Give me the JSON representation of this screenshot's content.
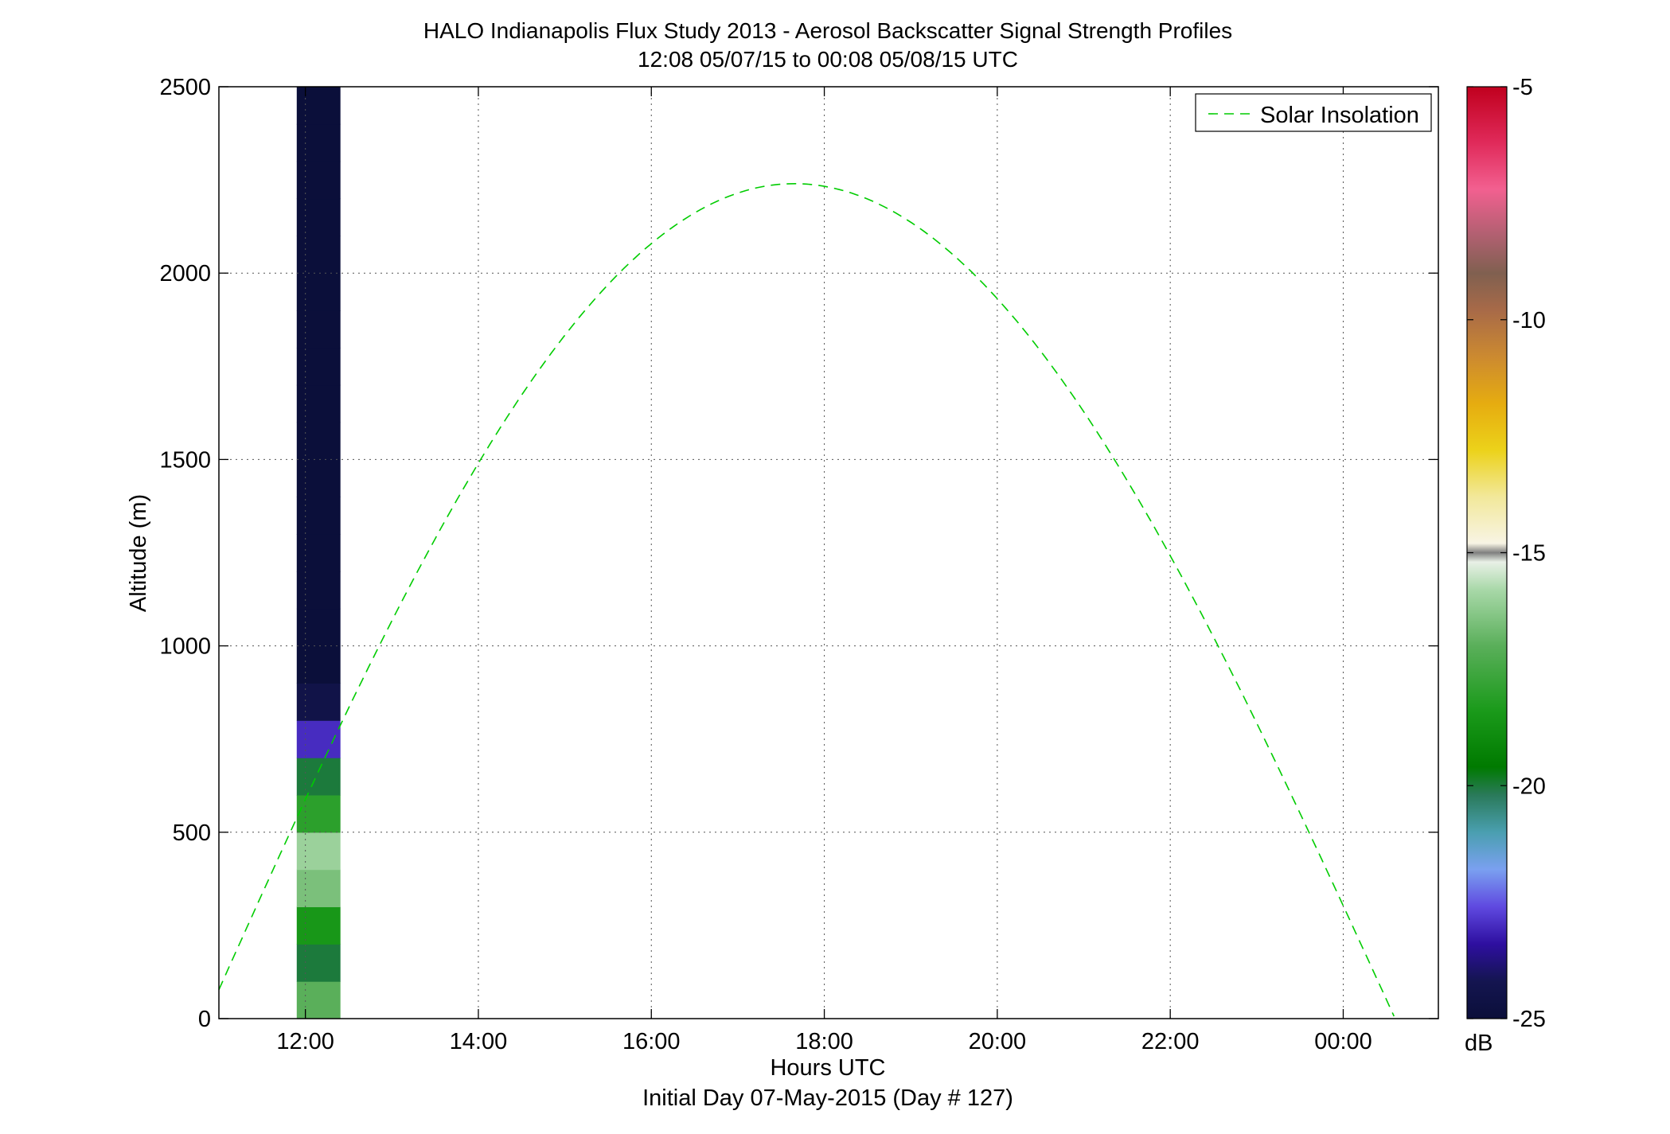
{
  "chart_data": {
    "type": "heatmap",
    "title": "HALO Indianapolis Flux Study 2013 - Aerosol Backscatter Signal Strength Profiles",
    "subtitle": "12:08 05/07/15 to 00:08 05/08/15  UTC",
    "xlabel": "Hours UTC",
    "xlabel2": "Initial Day 07-May-2015 (Day # 127)",
    "ylabel": "Altitude (m)",
    "x_ticks": [
      "12:00",
      "14:00",
      "16:00",
      "18:00",
      "20:00",
      "22:00",
      "00:00"
    ],
    "x_tick_hours": [
      12,
      14,
      16,
      18,
      20,
      22,
      24
    ],
    "xlim_hours": [
      11,
      25.1
    ],
    "y_ticks": [
      "0",
      "500",
      "1000",
      "1500",
      "2000",
      "2500"
    ],
    "y_tick_values": [
      0,
      500,
      1000,
      1500,
      2000,
      2500
    ],
    "ylim": [
      0,
      2500
    ],
    "grid": true,
    "legend": {
      "entries": [
        "Solar Insolation"
      ],
      "placement": "top-right"
    },
    "colorbar": {
      "label": "dB",
      "ticks": [
        "-5",
        "-10",
        "-15",
        "-20",
        "-25"
      ],
      "tick_values": [
        -5,
        -10,
        -15,
        -20,
        -25
      ],
      "range": [
        -25,
        -5
      ]
    },
    "solar_insolation": {
      "color": "#00cc00",
      "peak_hour": 17.65,
      "peak_altitude": 2240,
      "zero_altitude_hours": [
        10.85,
        24.6
      ]
    },
    "cells": {
      "altitude_step_m": 100,
      "columns": [
        {
          "hour": 12.15,
          "rows": [
            [
              50,
              -17
            ],
            [
              150,
              -20
            ],
            [
              250,
              -18.5
            ],
            [
              350,
              -16.5
            ],
            [
              450,
              -16
            ],
            [
              550,
              -18
            ],
            [
              650,
              -20
            ],
            [
              750,
              -23
            ],
            [
              850,
              -24.5
            ],
            [
              950,
              -25
            ],
            [
              1050,
              -25
            ],
            [
              1150,
              -25
            ],
            [
              1250,
              -25
            ],
            [
              1350,
              -25
            ],
            [
              1450,
              -25
            ],
            [
              1550,
              -25
            ],
            [
              1650,
              -25
            ],
            [
              1750,
              -25
            ],
            [
              1850,
              -25
            ],
            [
              1950,
              -25
            ],
            [
              2050,
              -25
            ],
            [
              2150,
              -25
            ],
            [
              2250,
              -25
            ],
            [
              2350,
              -25
            ],
            [
              2450,
              -25
            ]
          ]
        }
      ]
    }
  }
}
